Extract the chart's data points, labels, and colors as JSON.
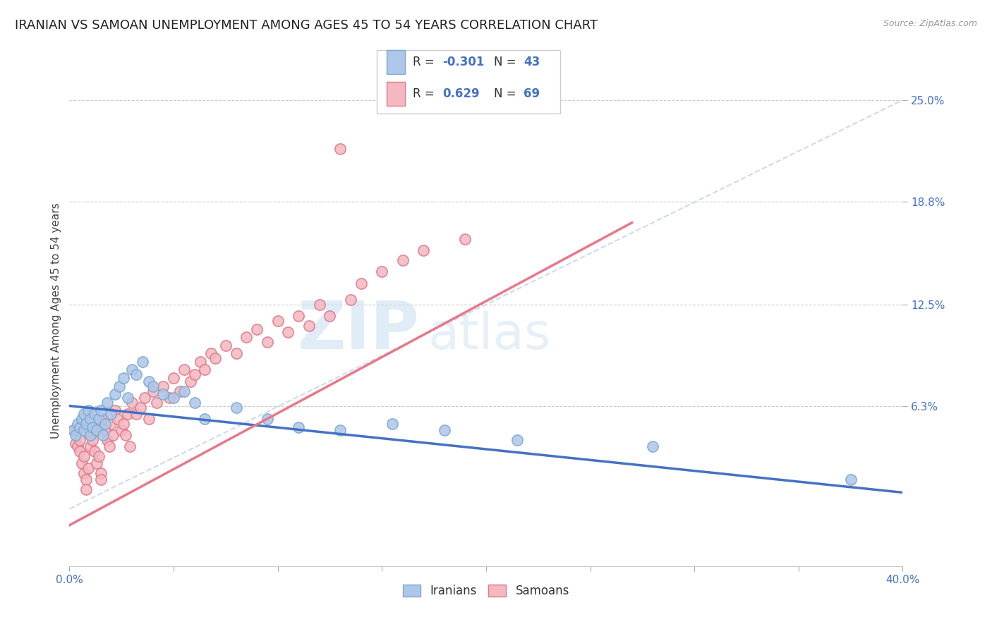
{
  "title": "IRANIAN VS SAMOAN UNEMPLOYMENT AMONG AGES 45 TO 54 YEARS CORRELATION CHART",
  "source": "Source: ZipAtlas.com",
  "ylabel": "Unemployment Among Ages 45 to 54 years",
  "xlim": [
    0.0,
    0.4
  ],
  "ylim": [
    -0.035,
    0.265
  ],
  "iranian_R": -0.301,
  "iranian_N": 43,
  "samoan_R": 0.629,
  "samoan_N": 69,
  "iranian_color": "#aec6e8",
  "samoan_color": "#f4b8c1",
  "iranian_line_color": "#4472c4",
  "samoan_line_color": "#e8788a",
  "ref_line_color": "#c8d8e8",
  "background_color": "#ffffff",
  "grid_color": "#cccccc",
  "watermark_color": "#ddeef8",
  "title_fontsize": 13,
  "label_fontsize": 11,
  "tick_fontsize": 11,
  "legend_fontsize": 12,
  "iranian_trend_x0": 0.0,
  "iranian_trend_y0": 0.063,
  "iranian_trend_x1": 0.4,
  "iranian_trend_y1": 0.01,
  "samoan_trend_x0": 0.0,
  "samoan_trend_y0": -0.01,
  "samoan_trend_x1": 0.27,
  "samoan_trend_y1": 0.175,
  "iranians_x": [
    0.002,
    0.003,
    0.004,
    0.005,
    0.006,
    0.007,
    0.007,
    0.008,
    0.009,
    0.01,
    0.01,
    0.011,
    0.012,
    0.013,
    0.014,
    0.015,
    0.016,
    0.017,
    0.018,
    0.02,
    0.022,
    0.024,
    0.026,
    0.028,
    0.03,
    0.032,
    0.035,
    0.038,
    0.04,
    0.045,
    0.05,
    0.055,
    0.06,
    0.065,
    0.08,
    0.095,
    0.11,
    0.13,
    0.155,
    0.18,
    0.215,
    0.28,
    0.375
  ],
  "iranians_y": [
    0.048,
    0.045,
    0.052,
    0.05,
    0.055,
    0.048,
    0.058,
    0.052,
    0.06,
    0.045,
    0.055,
    0.05,
    0.058,
    0.048,
    0.055,
    0.06,
    0.045,
    0.052,
    0.065,
    0.058,
    0.07,
    0.075,
    0.08,
    0.068,
    0.085,
    0.082,
    0.09,
    0.078,
    0.075,
    0.07,
    0.068,
    0.072,
    0.065,
    0.055,
    0.062,
    0.055,
    0.05,
    0.048,
    0.052,
    0.048,
    0.042,
    0.038,
    0.018
  ],
  "samoans_x": [
    0.002,
    0.003,
    0.004,
    0.005,
    0.005,
    0.006,
    0.007,
    0.007,
    0.008,
    0.008,
    0.009,
    0.01,
    0.01,
    0.011,
    0.012,
    0.012,
    0.013,
    0.014,
    0.015,
    0.015,
    0.016,
    0.017,
    0.018,
    0.019,
    0.02,
    0.021,
    0.022,
    0.023,
    0.025,
    0.026,
    0.027,
    0.028,
    0.029,
    0.03,
    0.032,
    0.034,
    0.036,
    0.038,
    0.04,
    0.042,
    0.045,
    0.048,
    0.05,
    0.053,
    0.055,
    0.058,
    0.06,
    0.063,
    0.065,
    0.068,
    0.07,
    0.075,
    0.08,
    0.085,
    0.09,
    0.095,
    0.1,
    0.105,
    0.11,
    0.115,
    0.12,
    0.125,
    0.13,
    0.135,
    0.14,
    0.15,
    0.16,
    0.17,
    0.19
  ],
  "samoans_y": [
    0.048,
    0.04,
    0.038,
    0.042,
    0.035,
    0.028,
    0.032,
    0.022,
    0.018,
    0.012,
    0.025,
    0.045,
    0.038,
    0.042,
    0.05,
    0.035,
    0.028,
    0.032,
    0.022,
    0.018,
    0.055,
    0.048,
    0.042,
    0.038,
    0.052,
    0.045,
    0.06,
    0.055,
    0.048,
    0.052,
    0.045,
    0.058,
    0.038,
    0.065,
    0.058,
    0.062,
    0.068,
    0.055,
    0.072,
    0.065,
    0.075,
    0.068,
    0.08,
    0.072,
    0.085,
    0.078,
    0.082,
    0.09,
    0.085,
    0.095,
    0.092,
    0.1,
    0.095,
    0.105,
    0.11,
    0.102,
    0.115,
    0.108,
    0.118,
    0.112,
    0.125,
    0.118,
    0.22,
    0.128,
    0.138,
    0.145,
    0.152,
    0.158,
    0.165
  ]
}
